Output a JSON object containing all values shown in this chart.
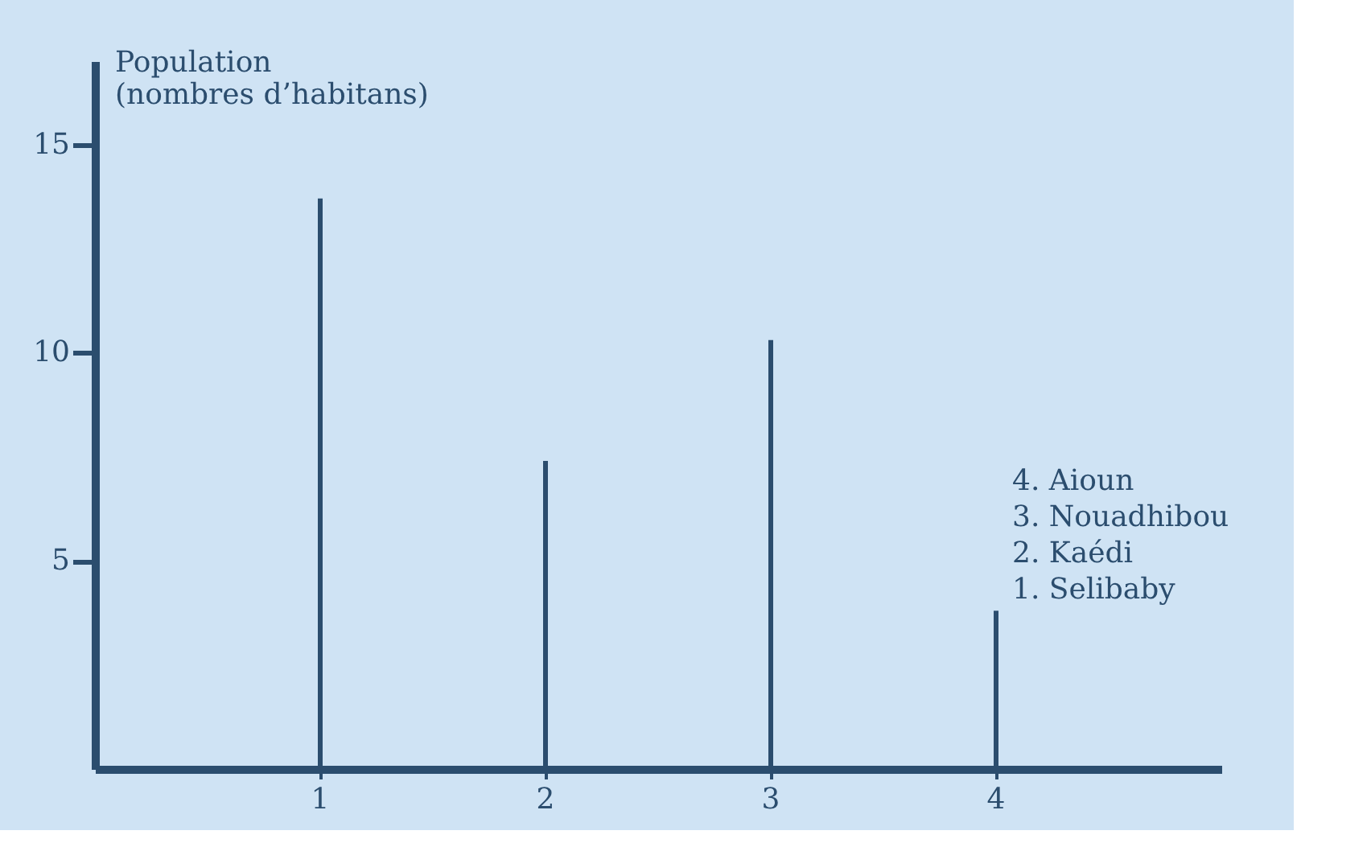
{
  "chart_data": {
    "type": "bar",
    "ylabel": "Population\n(nombres d’habitans)",
    "categories": [
      "1",
      "2",
      "3",
      "4"
    ],
    "values": [
      13.7,
      7.4,
      10.3,
      3.8
    ],
    "color": "#2b4d6e",
    "ylim": [
      0,
      17
    ],
    "yticks": [
      5,
      10,
      15
    ],
    "annotations": [
      "4. Aioun",
      "3. Nouadhibou",
      "2. Kaédi",
      "1. Selibaby"
    ]
  }
}
